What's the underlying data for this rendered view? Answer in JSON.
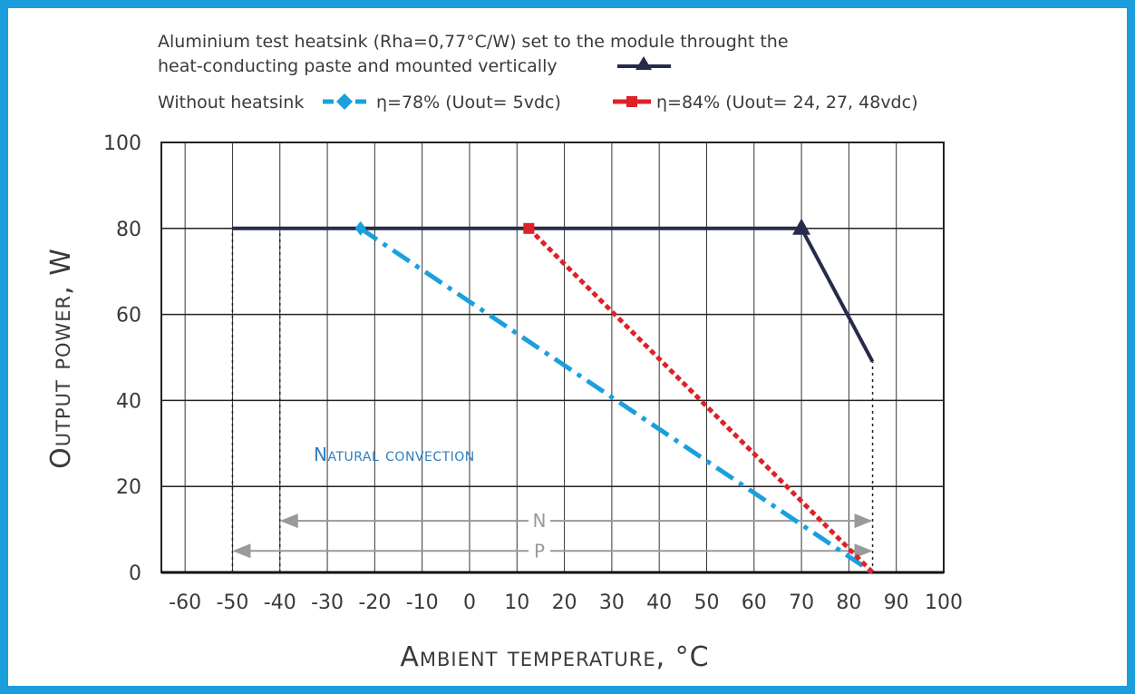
{
  "chart_data": {
    "type": "line",
    "title": "",
    "xlabel": "Ambient temperature, °C",
    "ylabel": "Output power, W",
    "xlim": [
      -65,
      100
    ],
    "ylim": [
      0,
      100
    ],
    "x_ticks": [
      "-60",
      "-50",
      "-40",
      "-30",
      "-20",
      "-10",
      "0",
      "10",
      "20",
      "30",
      "40",
      "50",
      "60",
      "70",
      "80",
      "90",
      "100"
    ],
    "y_ticks": [
      "0",
      "20",
      "40",
      "60",
      "80",
      "100"
    ],
    "grid": true,
    "legend": {
      "heatsink_line1": "Aluminium test heatsink (Rha=0,77°C/W) set to the module throught the",
      "heatsink_line2": "heat-conducting paste and mounted vertically",
      "without_heatsink": "Without heatsink",
      "eta78": "η=78% (Uout= 5vdc)",
      "eta84": "η=84% (Uout= 24, 27, 48vdc)"
    },
    "series": [
      {
        "key": "heatsink",
        "color": "#262b4b",
        "style": "solid",
        "marker": "triangle",
        "points": [
          [
            -50,
            80
          ],
          [
            70,
            80
          ],
          [
            85,
            49
          ]
        ],
        "marker_at": [
          70,
          80
        ]
      },
      {
        "key": "eta78",
        "color": "#1aa0dc",
        "style": "dashdot",
        "marker": "diamond",
        "points": [
          [
            -23,
            80
          ],
          [
            85,
            0
          ]
        ],
        "marker_at": [
          -23,
          80
        ]
      },
      {
        "key": "eta84",
        "color": "#dd2127",
        "style": "dotted",
        "marker": "square",
        "points": [
          [
            12.5,
            80
          ],
          [
            85,
            0
          ]
        ],
        "marker_at": [
          12.5,
          80
        ]
      }
    ],
    "annotations": {
      "region_label": "Natural convection",
      "range_N": {
        "label": "N",
        "from": -40,
        "to": 85,
        "y": 12
      },
      "range_P": {
        "label": "P",
        "from": -50,
        "to": 85,
        "y": 5
      },
      "vlines": [
        {
          "x": -50,
          "from": 0,
          "to": 80
        },
        {
          "x": -40,
          "from": 0,
          "to": 80
        },
        {
          "x": 85,
          "from": 0,
          "to": 49
        }
      ]
    }
  }
}
